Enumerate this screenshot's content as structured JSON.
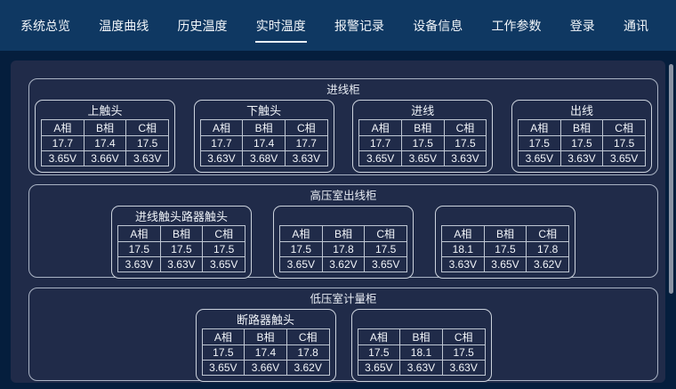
{
  "nav": {
    "items": [
      {
        "label": "系统总览",
        "active": false
      },
      {
        "label": "温度曲线",
        "active": false
      },
      {
        "label": "历史温度",
        "active": false
      },
      {
        "label": "实时温度",
        "active": true
      },
      {
        "label": "报警记录",
        "active": false
      },
      {
        "label": "设备信息",
        "active": false
      },
      {
        "label": "工作参数",
        "active": false
      },
      {
        "label": "登录",
        "active": false
      },
      {
        "label": "通讯",
        "active": false
      }
    ]
  },
  "phases": {
    "a": "A相",
    "b": "B相",
    "c": "C相"
  },
  "colors": {
    "header_bg": "#0f3862",
    "page_bg": "#051e3d",
    "panel_bg": "#202b49",
    "phase_a": "#e8d43c",
    "phase_b": "#2ed52e",
    "phase_c": "#e0342e"
  },
  "sections": [
    {
      "title": "进线柜",
      "panels": [
        {
          "title": "上触头",
          "temp": [
            "17.7",
            "17.4",
            "17.5"
          ],
          "volt": [
            "3.65V",
            "3.66V",
            "3.63V"
          ]
        },
        {
          "title": "下触头",
          "temp": [
            "17.7",
            "17.4",
            "17.7"
          ],
          "volt": [
            "3.63V",
            "3.68V",
            "3.63V"
          ]
        },
        {
          "title": "进线",
          "temp": [
            "17.7",
            "17.5",
            "17.5"
          ],
          "volt": [
            "3.65V",
            "3.65V",
            "3.63V"
          ]
        },
        {
          "title": "出线",
          "temp": [
            "17.5",
            "17.5",
            "17.5"
          ],
          "volt": [
            "3.65V",
            "3.63V",
            "3.65V"
          ]
        }
      ]
    },
    {
      "title": "高压室出线柜",
      "panels": [
        {
          "title": "进线触头路器触头",
          "temp": [
            "17.5",
            "17.5",
            "17.5"
          ],
          "volt": [
            "3.63V",
            "3.63V",
            "3.65V"
          ]
        },
        {
          "title": "",
          "temp": [
            "17.5",
            "17.8",
            "17.5"
          ],
          "volt": [
            "3.65V",
            "3.62V",
            "3.65V"
          ]
        },
        {
          "title": "",
          "temp": [
            "18.1",
            "17.5",
            "17.8"
          ],
          "volt": [
            "3.63V",
            "3.65V",
            "3.62V"
          ]
        }
      ]
    },
    {
      "title": "低压室计量柜",
      "panels": [
        {
          "title": "断路器触头",
          "temp": [
            "17.5",
            "17.4",
            "17.8"
          ],
          "volt": [
            "3.65V",
            "3.66V",
            "3.62V"
          ]
        },
        {
          "title": "",
          "temp": [
            "17.5",
            "18.1",
            "17.5"
          ],
          "volt": [
            "3.65V",
            "3.63V",
            "3.63V"
          ]
        }
      ]
    }
  ]
}
